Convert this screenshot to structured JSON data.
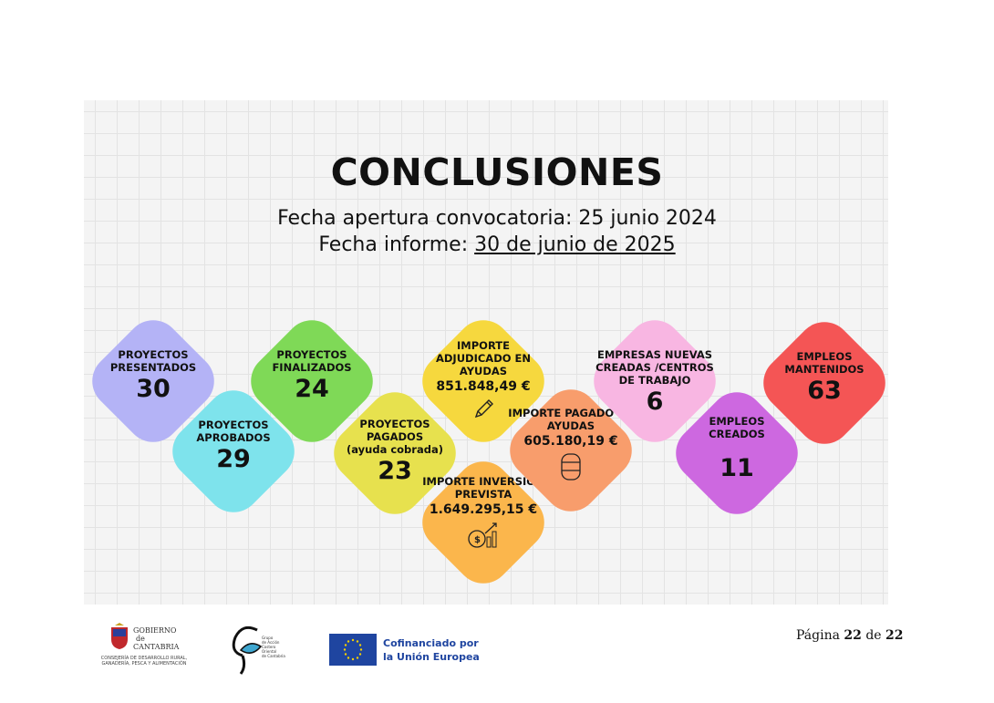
{
  "title": "CONCLUSIONES",
  "subtitle": {
    "line1": "Fecha apertura convocatoria: 25 junio 2024",
    "line2_prefix": "Fecha informe: ",
    "line2_date": "30 de junio de 2025"
  },
  "cards": [
    {
      "label": "PROYECTOS PRESENTADOS",
      "value": "30",
      "color": "#b4b3f6"
    },
    {
      "label": "PROYECTOS APROBADOS",
      "value": "29",
      "color": "#7ee3ec"
    },
    {
      "label": "PROYECTOS FINALIZADOS",
      "value": "24",
      "color": "#7fd957"
    },
    {
      "label": "PROYECTOS PAGADOS",
      "sub": "(ayuda cobrada)",
      "value": "23",
      "color": "#e7e14e"
    },
    {
      "label": "IMPORTE ADJUDICADO EN AYUDAS",
      "value": "851.848,49 €",
      "icon": "pencil-icon",
      "color": "#f6d83e"
    },
    {
      "label": "IMPORTE INVERSIÓN PREVISTA",
      "value": "1.649.295,15 €",
      "icon": "money-bag-growth-icon",
      "color": "#fbb64c"
    },
    {
      "label": "IMPORTE PAGADO EN AYUDAS",
      "value": "605.180,19 €",
      "icon": "database-icon",
      "color": "#f89d6c"
    },
    {
      "label": "EMPRESAS NUEVAS CREADAS /CENTROS DE TRABAJO",
      "value": "6",
      "color": "#f8b6e2"
    },
    {
      "label": "EMPLEOS CREADOS",
      "value": "11",
      "color": "#cd68e0"
    },
    {
      "label": "EMPLEOS MANTENIDOS",
      "value": "63",
      "color": "#f45555"
    }
  ],
  "footer": {
    "gobierno": {
      "line1": "GOBIERNO",
      "line2": "de",
      "line3": "CANTABRIA",
      "dept1": "CONSEJERÍA DE DESARROLLO RURAL,",
      "dept2": "GANADERÍA, PESCA Y ALIMENTACIÓN"
    },
    "gac": {
      "l1": "Grupo",
      "l2": "de Acción",
      "l3": "Costero",
      "l4": "Oriental",
      "l5": "de Cantabria"
    },
    "eu": {
      "l1": "Cofinanciado por",
      "l2": "la Unión Europea"
    },
    "page": {
      "prefix": "Página ",
      "current": "22",
      "sep": " de ",
      "total": "22"
    }
  }
}
